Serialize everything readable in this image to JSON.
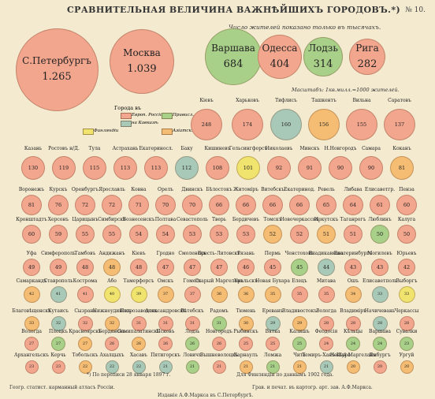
{
  "header": {
    "title": "СРАВНИТЕЛЬНАЯ ВЕЛИЧИНА ВАЖНѢЙШИХЪ ГОРОДОВЪ.*)",
    "number": "№ 10.",
    "subtitle": "Число жителей показано только въ тысячахъ.",
    "scale": "Масштабъ: 1кв.милл.=1000 жителей."
  },
  "legend": {
    "title": "Города въ",
    "items": [
      {
        "label": "Европ. Россіи",
        "color": "#f3a68e"
      },
      {
        "label": "Привисл. губ.",
        "color": "#a9d089"
      },
      {
        "label": "на Кавказѣ",
        "color": "#a9c9b8"
      },
      {
        "label": "Финляндіи",
        "color": "#f0e36e"
      },
      {
        "label": "Азіатск. Россіи",
        "color": "#f5bd73"
      }
    ]
  },
  "colors": {
    "euro": "#f3a68e",
    "vistula": "#a9d089",
    "caucasus": "#a9c9b8",
    "finland": "#f0e36e",
    "asia": "#f5bd73",
    "background": "#f3ead0"
  },
  "big_cities": [
    {
      "name": "С.Петербургъ",
      "value": "1.265",
      "color": "euro"
    },
    {
      "name": "Москва",
      "value": "1.039",
      "color": "euro"
    },
    {
      "name": "Варшава",
      "value": "684",
      "color": "vistula"
    },
    {
      "name": "Одесса",
      "value": "404",
      "color": "euro"
    },
    {
      "name": "Лодзь",
      "value": "314",
      "color": "vistula"
    },
    {
      "name": "Рига",
      "value": "282",
      "color": "euro"
    }
  ],
  "row1": [
    {
      "name": "Кіевъ",
      "value": "248",
      "color": "euro"
    },
    {
      "name": "Харьковъ",
      "value": "174",
      "color": "euro"
    },
    {
      "name": "Тифлисъ",
      "value": "160",
      "color": "caucasus"
    },
    {
      "name": "Ташкентъ",
      "value": "156",
      "color": "asia"
    },
    {
      "name": "Вильна",
      "value": "155",
      "color": "euro"
    },
    {
      "name": "Саратовъ",
      "value": "137",
      "color": "euro"
    }
  ],
  "row2": [
    {
      "name": "Казань",
      "value": "130",
      "color": "euro"
    },
    {
      "name": "Ростовъ н/Д.",
      "value": "119",
      "color": "euro"
    },
    {
      "name": "Тула",
      "value": "115",
      "color": "euro"
    },
    {
      "name": "Астрахань",
      "value": "113",
      "color": "euro"
    },
    {
      "name": "Екатериносл.",
      "value": "113",
      "color": "euro"
    },
    {
      "name": "Баку",
      "value": "112",
      "color": "caucasus"
    },
    {
      "name": "Кишиневъ",
      "value": "108",
      "color": "euro"
    },
    {
      "name": "Гельсингфорсъ",
      "value": "101",
      "color": "finland"
    },
    {
      "name": "Николаевъ",
      "value": "92",
      "color": "euro"
    },
    {
      "name": "Минскъ",
      "value": "91",
      "color": "euro"
    },
    {
      "name": "Н.Новгородъ",
      "value": "90",
      "color": "euro"
    },
    {
      "name": "Самара",
      "value": "90",
      "color": "euro"
    },
    {
      "name": "Коканъ",
      "value": "81",
      "color": "asia"
    }
  ],
  "rows": [
    {
      "cities": [
        {
          "name": "Воронежъ",
          "value": "81",
          "color": "euro"
        },
        {
          "name": "Курскъ",
          "value": "76",
          "color": "euro"
        },
        {
          "name": "Оренбургъ",
          "value": "72",
          "color": "euro"
        },
        {
          "name": "Ярославль",
          "value": "72",
          "color": "euro"
        },
        {
          "name": "Ковна",
          "value": "71",
          "color": "euro"
        },
        {
          "name": "Орелъ",
          "value": "70",
          "color": "euro"
        },
        {
          "name": "Двинскъ",
          "value": "70",
          "color": "euro"
        },
        {
          "name": "Бѣлостокъ",
          "value": "66",
          "color": "euro"
        },
        {
          "name": "Житоміръ",
          "value": "66",
          "color": "euro"
        },
        {
          "name": "Витебскъ",
          "value": "66",
          "color": "euro"
        },
        {
          "name": "Екатеринод.",
          "value": "66",
          "color": "euro"
        },
        {
          "name": "Ревель",
          "value": "65",
          "color": "euro"
        },
        {
          "name": "Либава",
          "value": "64",
          "color": "euro"
        },
        {
          "name": "Елисаветгр.",
          "value": "61",
          "color": "euro"
        },
        {
          "name": "Пенза",
          "value": "60",
          "color": "euro"
        }
      ]
    },
    {
      "cities": [
        {
          "name": "Кронштадтъ",
          "value": "60",
          "color": "euro"
        },
        {
          "name": "Херсонъ",
          "value": "59",
          "color": "euro"
        },
        {
          "name": "Царицынъ",
          "value": "55",
          "color": "euro"
        },
        {
          "name": "Симбирскъ",
          "value": "55",
          "color": "euro"
        },
        {
          "name": "Вознесенскъ",
          "value": "54",
          "color": "euro"
        },
        {
          "name": "Полтава",
          "value": "54",
          "color": "euro"
        },
        {
          "name": "Севастополь",
          "value": "53",
          "color": "euro"
        },
        {
          "name": "Тверь",
          "value": "53",
          "color": "euro"
        },
        {
          "name": "Бердичевъ",
          "value": "53",
          "color": "euro"
        },
        {
          "name": "Томскъ",
          "value": "52",
          "color": "asia"
        },
        {
          "name": "Новочеркасскъ",
          "value": "52",
          "color": "euro"
        },
        {
          "name": "Иркутскъ",
          "value": "51",
          "color": "asia"
        },
        {
          "name": "Таганрогъ",
          "value": "51",
          "color": "euro"
        },
        {
          "name": "Люблинъ",
          "value": "50",
          "color": "vistula"
        },
        {
          "name": "Калуга",
          "value": "50",
          "color": "euro"
        }
      ]
    },
    {
      "cities": [
        {
          "name": "Уфа",
          "value": "49",
          "color": "euro"
        },
        {
          "name": "Симферополь",
          "value": "49",
          "color": "euro"
        },
        {
          "name": "Тамбовъ",
          "value": "48",
          "color": "euro"
        },
        {
          "name": "Андижанъ",
          "value": "48",
          "color": "asia"
        },
        {
          "name": "Кіевъ",
          "value": "48",
          "color": "euro"
        },
        {
          "name": "Гродно",
          "value": "47",
          "color": "euro"
        },
        {
          "name": "Смоленскъ",
          "value": "47",
          "color": "euro"
        },
        {
          "name": "Бресть-Литовскъ",
          "value": "47",
          "color": "euro"
        },
        {
          "name": "Рязань",
          "value": "46",
          "color": "euro"
        },
        {
          "name": "Пермь",
          "value": "45",
          "color": "euro"
        },
        {
          "name": "Ченстоховъ",
          "value": "45",
          "color": "vistula"
        },
        {
          "name": "Владикавказъ",
          "value": "44",
          "color": "caucasus"
        },
        {
          "name": "Екатеринбургъ",
          "value": "43",
          "color": "euro"
        },
        {
          "name": "Могилевъ",
          "value": "43",
          "color": "euro"
        },
        {
          "name": "Юрьевъ",
          "value": "42",
          "color": "euro"
        }
      ]
    },
    {
      "cities": [
        {
          "name": "Самаркандъ",
          "value": "42",
          "color": "asia"
        },
        {
          "name": "Ставрополь",
          "value": "41",
          "color": "caucasus"
        },
        {
          "name": "Кострома",
          "value": "41",
          "color": "euro"
        },
        {
          "name": "Або",
          "value": "40",
          "color": "finland"
        },
        {
          "name": "Тамерфорсъ",
          "value": "39",
          "color": "finland"
        },
        {
          "name": "Омскъ",
          "value": "37",
          "color": "asia"
        },
        {
          "name": "Гомель",
          "value": "37",
          "color": "euro"
        },
        {
          "name": "Старый Маргеланъ",
          "value": "36",
          "color": "asia"
        },
        {
          "name": "Уральскъ",
          "value": "36",
          "color": "asia"
        },
        {
          "name": "Новая Бухара",
          "value": "35",
          "color": "asia"
        },
        {
          "name": "Елецъ",
          "value": "35",
          "color": "euro"
        },
        {
          "name": "Митава",
          "value": "35",
          "color": "euro"
        },
        {
          "name": "Ошъ",
          "value": "34",
          "color": "asia"
        },
        {
          "name": "Елисаветполь",
          "value": "33",
          "color": "caucasus"
        },
        {
          "name": "Выборгъ",
          "value": "33",
          "color": "finland"
        }
      ]
    },
    {
      "cities": [
        {
          "name": "Благовѣщенскъ",
          "value": "33",
          "color": "asia"
        },
        {
          "name": "Кутаисъ",
          "value": "32",
          "color": "caucasus"
        },
        {
          "name": "Сызрань",
          "value": "32",
          "color": "euro"
        },
        {
          "name": "Нижнеудинскъ",
          "value": "32",
          "color": "asia"
        },
        {
          "name": "Петрозаводскъ",
          "value": "31",
          "color": "euro"
        },
        {
          "name": "Александровскъ",
          "value": "31",
          "color": "euro"
        },
        {
          "name": "Вѣтебскъ",
          "value": "31",
          "color": "euro"
        },
        {
          "name": "Радомъ",
          "value": "31",
          "color": "vistula"
        },
        {
          "name": "Тюмень",
          "value": "30",
          "color": "asia"
        },
        {
          "name": "Ереванъ",
          "value": "29",
          "color": "caucasus"
        },
        {
          "name": "Владивостокъ",
          "value": "29",
          "color": "asia"
        },
        {
          "name": "Вологда",
          "value": "28",
          "color": "euro"
        },
        {
          "name": "Владиміръ",
          "value": "28",
          "color": "euro"
        },
        {
          "name": "Начичевань",
          "value": "28",
          "color": "caucasus"
        },
        {
          "name": "Черкассы",
          "value": "28",
          "color": "euro"
        }
      ]
    },
    {
      "cities": [
        {
          "name": "Вологда",
          "value": "27",
          "color": "euro"
        },
        {
          "name": "Плоцкъ",
          "value": "27",
          "color": "vistula"
        },
        {
          "name": "Красноярскъ",
          "value": "27",
          "color": "asia"
        },
        {
          "name": "Бердянскъ",
          "value": "26",
          "color": "euro"
        },
        {
          "name": "Семипалатинскъ",
          "value": "26",
          "color": "asia"
        },
        {
          "name": "Псковъ",
          "value": "26",
          "color": "euro"
        },
        {
          "name": "Лодзь",
          "value": "26",
          "color": "vistula"
        },
        {
          "name": "Новгородъ",
          "value": "26",
          "color": "euro"
        },
        {
          "name": "Рыбинскъ",
          "value": "25",
          "color": "euro"
        },
        {
          "name": "Вятка",
          "value": "25",
          "color": "euro"
        },
        {
          "name": "Калишъ",
          "value": "25",
          "color": "vistula"
        },
        {
          "name": "Феодосія",
          "value": "24",
          "color": "euro"
        },
        {
          "name": "Кѣльцы",
          "value": "24",
          "color": "vistula"
        },
        {
          "name": "Варшава",
          "value": "24",
          "color": "vistula"
        },
        {
          "name": "Сувалки",
          "value": "23",
          "color": "vistula"
        }
      ]
    },
    {
      "cities": [
        {
          "name": "Архангельскъ",
          "value": "23",
          "color": "euro"
        },
        {
          "name": "Керчь",
          "value": "23",
          "color": "euro"
        },
        {
          "name": "Тобольскъ",
          "value": "22",
          "color": "asia"
        },
        {
          "name": "Ахалцыхъ",
          "value": "22",
          "color": "caucasus"
        },
        {
          "name": "Хасавъ",
          "value": "22",
          "color": "caucasus"
        },
        {
          "name": "Пятигорскъ",
          "value": "21",
          "color": "caucasus"
        },
        {
          "name": "Ловичъ",
          "value": "21",
          "color": "vistula"
        },
        {
          "name": "Вышневолоцкъ",
          "value": "21",
          "color": "euro"
        },
        {
          "name": "Барнаулъ",
          "value": "21",
          "color": "asia"
        },
        {
          "name": "Ломжа",
          "value": "21",
          "color": "vistula"
        },
        {
          "name": "Чита",
          "value": "21",
          "color": "asia"
        },
        {
          "name": "Темиръ-Ханъ-Шура",
          "value": "21",
          "color": "caucasus"
        },
        {
          "name": "Новый Маргеланъ",
          "value": "20",
          "color": "asia"
        },
        {
          "name": "Ямбургъ",
          "value": "20",
          "color": "euro"
        },
        {
          "name": "Ургуй",
          "value": "20",
          "color": "asia"
        }
      ]
    }
  ],
  "footer": {
    "note1": "*) По переписи 28 января 1897 г.",
    "note2": "Для Финляндіи по даннымъ 1902 года.",
    "left": "Геогр. статист. карманный атласъ Россіи.",
    "center": "Изданіе А.Ф.Маркса въ С.Петербургѣ.",
    "right": "Грав. и печат. въ картогр. арт. зав. А.Ф.Маркса."
  }
}
